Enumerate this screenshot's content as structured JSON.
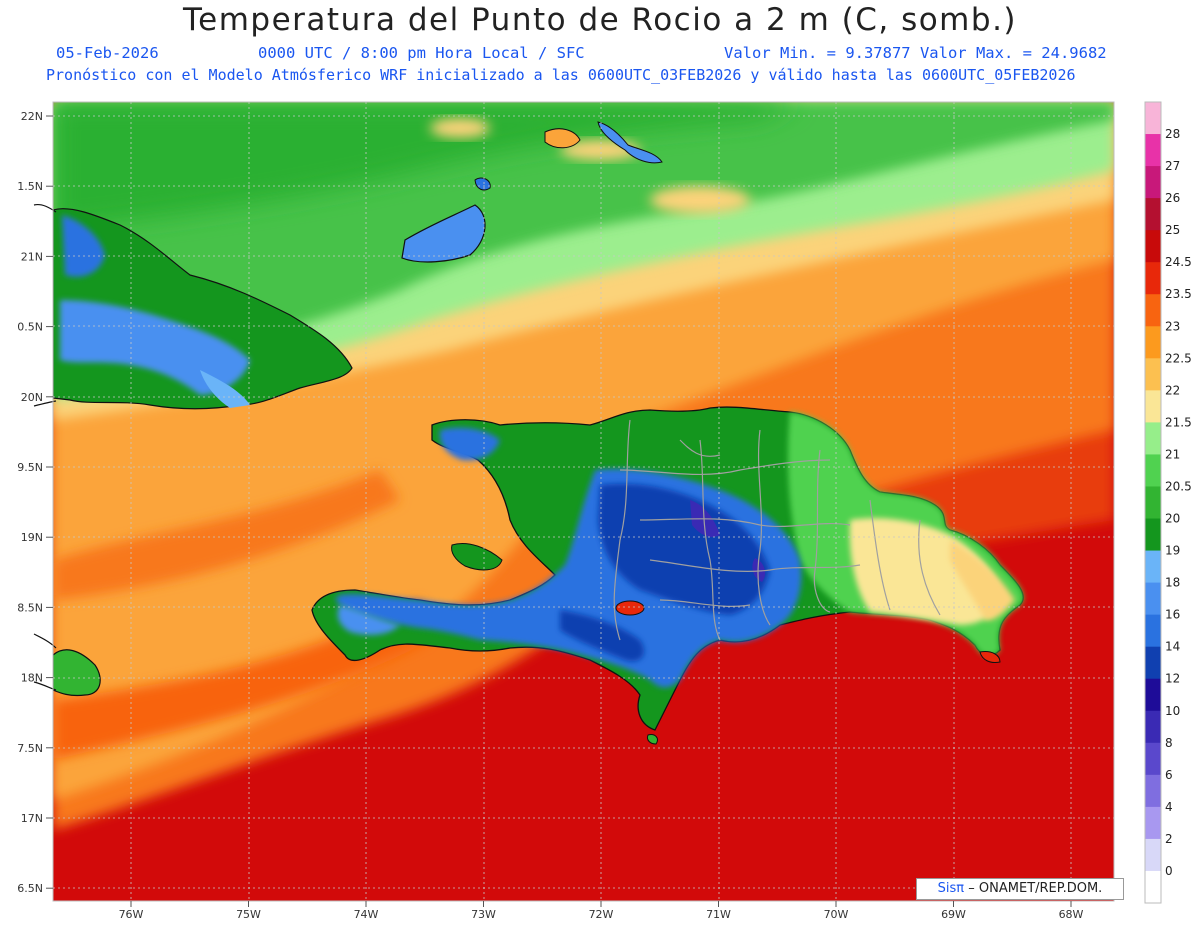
{
  "header": {
    "title": "Temperatura del Punto de Rocio a 2 m (C, somb.)",
    "date": "05-Feb-2026",
    "time_info": "0000 UTC / 8:00 pm Hora Local / SFC",
    "min_max": "Valor Min. = 9.37877  Valor Max. = 24.9682",
    "model_info": "Pronóstico con el Modelo Atmósferico WRF inicializado a las 0600UTC_03FEB2026 y válido hasta las  0600UTC_05FEB2026"
  },
  "map": {
    "lat_ticks": [
      "22N",
      "1.5N",
      "21N",
      "0.5N",
      "20N",
      "9.5N",
      "19N",
      "8.5N",
      "18N",
      "7.5N",
      "17N",
      "6.5N"
    ],
    "lon_ticks": [
      "76W",
      "75W",
      "74W",
      "73W",
      "72W",
      "71W",
      "70W",
      "69W",
      "68W"
    ],
    "credit_prefix": "Sisπ",
    "credit_suffix": "– ONAMET/REP.DOM."
  },
  "colorbar": {
    "levels": [
      "0",
      "2",
      "4",
      "6",
      "8",
      "10",
      "12",
      "14",
      "16",
      "18",
      "19",
      "20",
      "20.5",
      "21",
      "21.5",
      "22",
      "22.5",
      "23",
      "23.5",
      "24.5",
      "25",
      "26",
      "27",
      "28"
    ],
    "colors": [
      "#ffffff",
      "#d8d8f8",
      "#a898f0",
      "#7f6ee0",
      "#5a48cc",
      "#3a2ab4",
      "#1e0c98",
      "#1040b0",
      "#2a72e0",
      "#4a90f0",
      "#6ab4f8",
      "#14961e",
      "#32b432",
      "#50d250",
      "#96ee8a",
      "#fae696",
      "#fcc050",
      "#fc9a1e",
      "#f86410",
      "#e8280a",
      "#c80a0a",
      "#b41030",
      "#c8187a",
      "#e832a8",
      "#f8b4d8"
    ]
  }
}
